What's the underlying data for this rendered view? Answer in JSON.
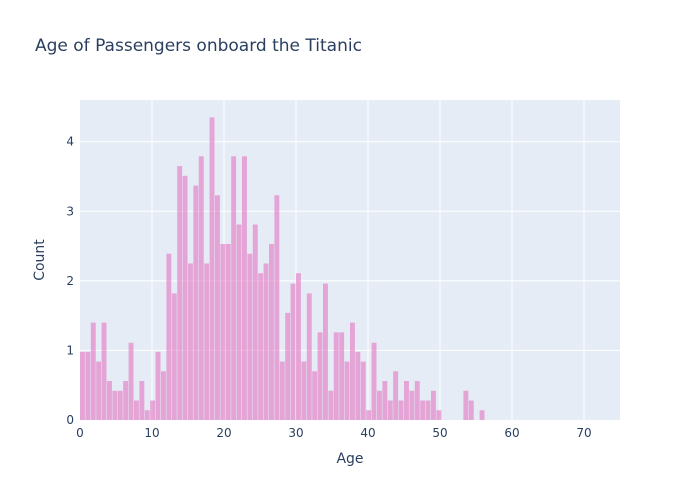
{
  "chart_data": {
    "type": "bar",
    "title": "Age of Passengers onboard the Titanic",
    "xlabel": "Age",
    "ylabel": "Count",
    "xlim": [
      0,
      75
    ],
    "ylim": [
      0,
      4.6
    ],
    "bin_width": 0.75,
    "x_ticks": [
      0,
      10,
      20,
      30,
      40,
      50,
      60,
      70
    ],
    "y_ticks": [
      0,
      1,
      2,
      3,
      4
    ],
    "grid": true,
    "bar_color": "#e377c2",
    "plot_bg": "#e5ecf6",
    "values": [
      0.98,
      0.98,
      1.4,
      0.84,
      1.4,
      0.56,
      0.42,
      0.42,
      0.56,
      1.11,
      0.28,
      0.56,
      0.14,
      0.28,
      0.98,
      0.7,
      2.39,
      1.82,
      3.65,
      3.51,
      2.25,
      3.37,
      3.79,
      2.25,
      4.35,
      3.23,
      2.53,
      2.53,
      3.79,
      2.81,
      3.79,
      2.39,
      2.81,
      2.11,
      2.25,
      2.53,
      3.23,
      0.84,
      1.54,
      1.96,
      2.11,
      0.84,
      1.82,
      0.7,
      1.26,
      1.96,
      0.42,
      1.26,
      1.26,
      0.84,
      1.4,
      0.98,
      0.84,
      0.14,
      1.11,
      0.42,
      0.56,
      0.28,
      0.7,
      0.28,
      0.56,
      0.42,
      0.56,
      0.28,
      0.28,
      0.42,
      0.14,
      0,
      0,
      0,
      0,
      0.42,
      0.28,
      0,
      0.14
    ]
  }
}
